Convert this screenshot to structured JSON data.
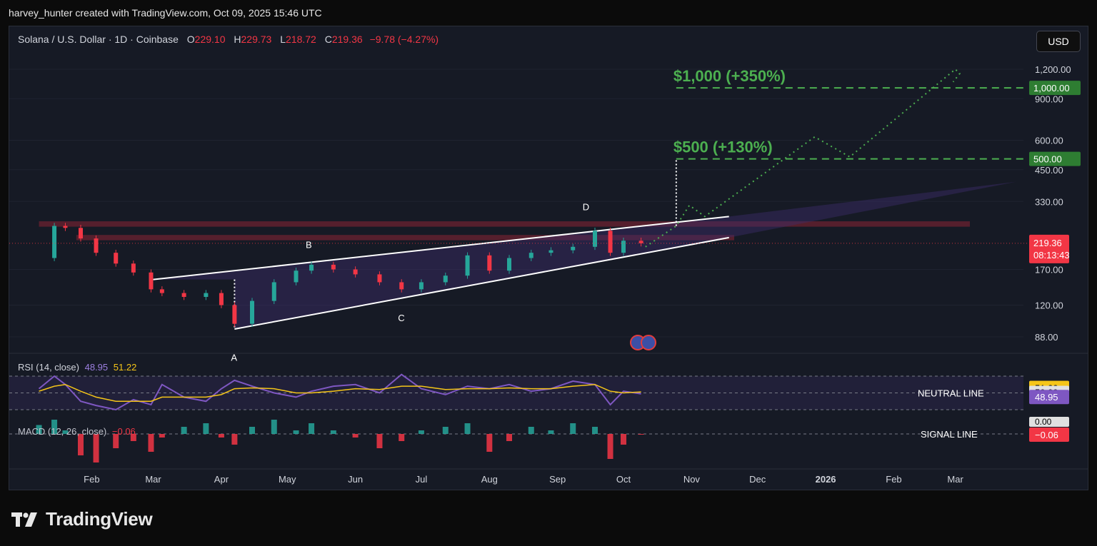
{
  "header": {
    "attribution": "harvey_hunter created with TradingView.com, Oct 09, 2025 15:46 UTC"
  },
  "legend": {
    "symbol": "Solana / U.S. Dollar · 1D · Coinbase",
    "open_key": "O",
    "open": "229.10",
    "high_key": "H",
    "high": "229.73",
    "low_key": "L",
    "low": "218.72",
    "close_key": "C",
    "close": "219.36",
    "change": "−9.78 (−4.27%)"
  },
  "currency_button": "USD",
  "footer": {
    "brand": "TradingView"
  },
  "colors": {
    "background": "#161a25",
    "up": "#26a69a",
    "down": "#f23645",
    "target_green": "#4caf50",
    "rsi_line": "#7e57c2",
    "rsi_ma": "#f5c518",
    "wedge_fill": "#3b2d6b",
    "resistance_band": "#8b2535"
  },
  "chart_data": [
    {
      "type": "line",
      "panel": "price",
      "scale": "log",
      "x_axis": {
        "labels": [
          "Feb",
          "Mar",
          "Apr",
          "May",
          "Jun",
          "Jul",
          "Aug",
          "Sep",
          "Oct",
          "Nov",
          "Dec",
          "2026",
          "Feb",
          "Mar"
        ]
      },
      "y_axis": {
        "ticks": [
          "1,200.00",
          "900.00",
          "600.00",
          "450.00",
          "330.00",
          "170.00",
          "120.00",
          "88.00"
        ]
      },
      "series": [
        {
          "name": "",
          "style": "candlestick",
          "dates": [
            "2025-01-08",
            "2025-01-15",
            "2025-01-20",
            "2025-01-27",
            "2025-02-03",
            "2025-02-12",
            "2025-02-20",
            "2025-02-28",
            "2025-03-05",
            "2025-03-15",
            "2025-03-25",
            "2025-04-01",
            "2025-04-07",
            "2025-04-15",
            "2025-04-25",
            "2025-05-05",
            "2025-05-12",
            "2025-05-22",
            "2025-06-01",
            "2025-06-12",
            "2025-06-22",
            "2025-07-01",
            "2025-07-12",
            "2025-07-22",
            "2025-08-01",
            "2025-08-10",
            "2025-08-20",
            "2025-08-29",
            "2025-09-08",
            "2025-09-18",
            "2025-09-25",
            "2025-10-01",
            "2025-10-09"
          ],
          "values": [
            190,
            260,
            255,
            230,
            200,
            180,
            165,
            140,
            135,
            130,
            135,
            120,
            100,
            125,
            150,
            168,
            178,
            170,
            162,
            150,
            140,
            150,
            160,
            195,
            168,
            190,
            200,
            205,
            212,
            248,
            200,
            225,
            219.36
          ]
        }
      ],
      "current_price": {
        "value": 219.36,
        "label": "219.36",
        "countdown": "08:13:43"
      },
      "targets": [
        {
          "label": "$500 (+130%)",
          "value": 500,
          "tag": "500.00"
        },
        {
          "label": "$1,000 (+350%)",
          "value": 1000,
          "tag": "1,000.00"
        }
      ],
      "annotations": [
        "A",
        "B",
        "C",
        "D"
      ],
      "pattern_lines": {
        "upper": [
          [
            "2025-03-01",
            154
          ],
          [
            "2025-11-18",
            285
          ]
        ],
        "lower": [
          [
            "2025-04-07",
            95
          ],
          [
            "2025-11-18",
            232
          ]
        ]
      },
      "resistance_bands": [
        [
          258,
          272
        ],
        [
          226,
          238
        ]
      ],
      "projection": [
        [
          "2025-10-11",
          212
        ],
        [
          "2025-10-25",
          260
        ],
        [
          "2025-10-31",
          318
        ],
        [
          "2025-11-07",
          285
        ],
        [
          "2025-12-27",
          620
        ],
        [
          "2026-01-12",
          510
        ],
        [
          "2026-03-01",
          1200
        ],
        [
          "2026-03-03",
          1150
        ],
        [
          "2026-02-28",
          1060
        ]
      ]
    },
    {
      "type": "line",
      "panel": "rsi",
      "title": "RSI (14, close)",
      "rsi_value": "48.95",
      "ma_value": "51.22",
      "levels": [
        "50.00"
      ],
      "line_label": "NEUTRAL LINE",
      "series": [
        {
          "name": "RSI",
          "values": [
            55,
            70,
            60,
            40,
            35,
            30,
            42,
            36,
            60,
            45,
            40,
            55,
            65,
            58,
            50,
            45,
            52,
            58,
            60,
            50,
            72,
            55,
            48,
            58,
            55,
            60,
            52,
            55,
            64,
            60,
            36,
            52,
            48.95
          ]
        },
        {
          "name": "MA",
          "values": [
            52,
            58,
            60,
            52,
            45,
            40,
            40,
            40,
            45,
            45,
            45,
            48,
            55,
            56,
            55,
            50,
            50,
            52,
            55,
            54,
            58,
            58,
            54,
            55,
            55,
            56,
            55,
            55,
            58,
            60,
            52,
            50,
            51.22
          ]
        }
      ]
    },
    {
      "type": "bar",
      "panel": "macd",
      "title": "MACD (12, 26, close)",
      "value": "−0.06",
      "zero_tag": "0.00",
      "line_label": "SIGNAL LINE",
      "values": [
        2.5,
        4,
        1,
        -6,
        -8,
        -4,
        -2,
        -5,
        -1,
        2,
        3,
        -1,
        -3,
        2,
        4,
        1,
        3,
        1,
        -1,
        -4,
        -2,
        1,
        2,
        3,
        -5,
        -2,
        2,
        1,
        3,
        2,
        -7,
        -3,
        -0.06
      ]
    }
  ]
}
